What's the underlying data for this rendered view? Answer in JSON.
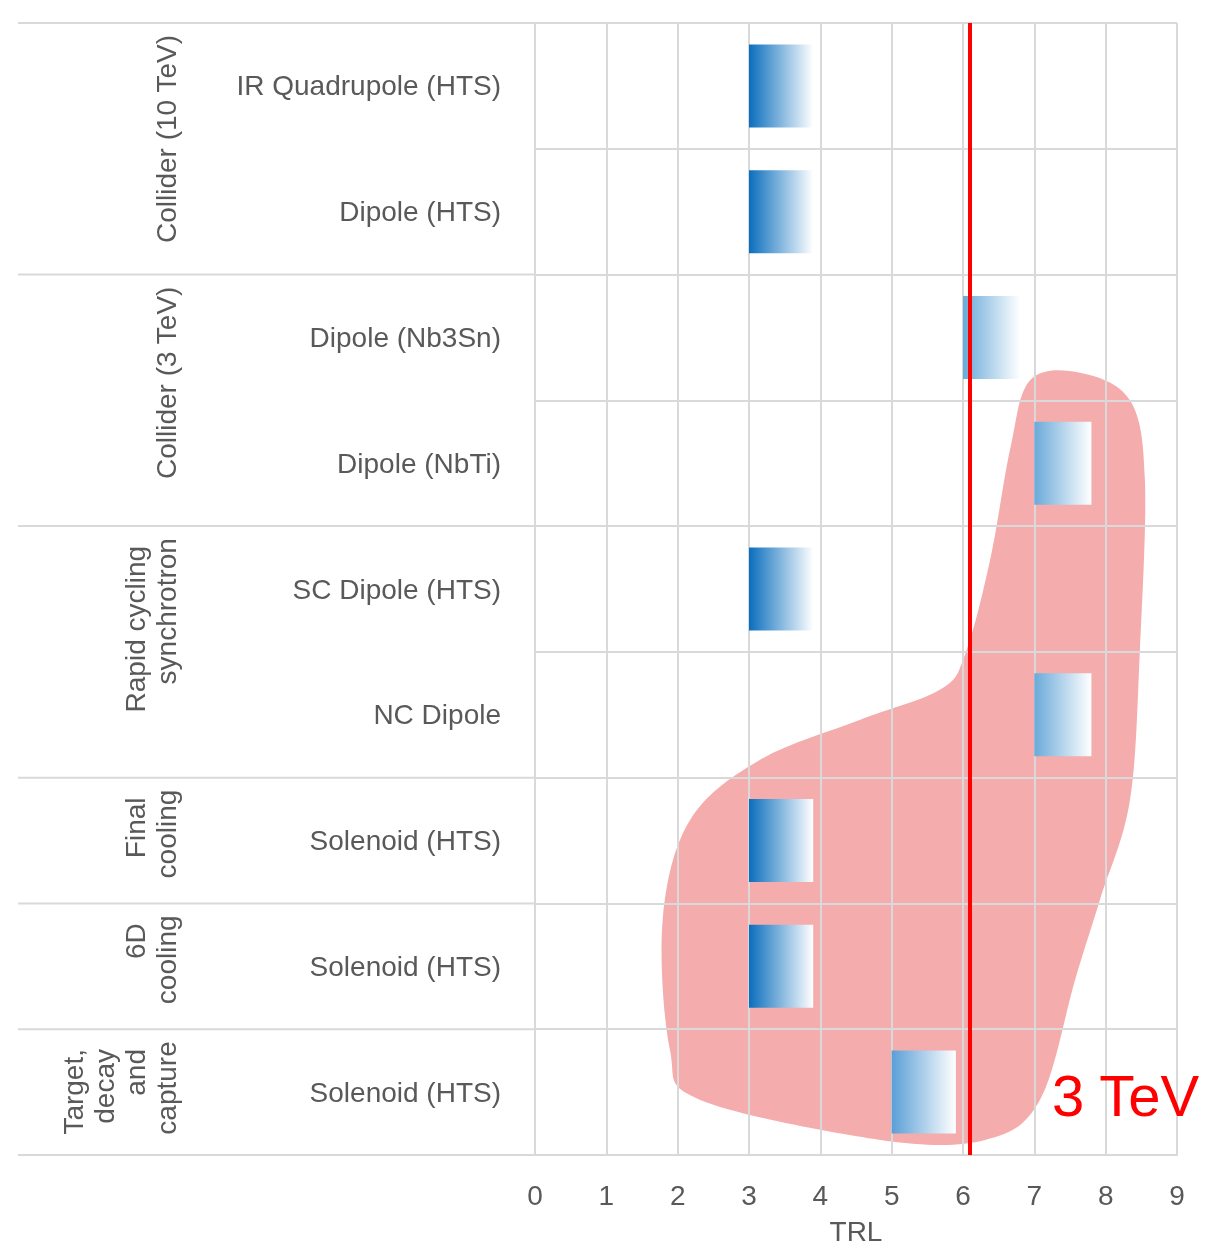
{
  "chart_data": {
    "type": "bar",
    "orientation": "horizontal",
    "categories": [
      "IR Quadrupole (HTS)",
      "Dipole (HTS)",
      "Dipole (Nb3Sn)",
      "Dipole (NbTi)",
      "SC Dipole (HTS)",
      "NC Dipole",
      "Solenoid (HTS)",
      "Solenoid (HTS)",
      "Solenoid (HTS)"
    ],
    "base": [
      3,
      3,
      6,
      7,
      3,
      7,
      3,
      3,
      5
    ],
    "values": [
      0.9,
      0.9,
      0.8,
      0.8,
      0.9,
      0.8,
      0.9,
      0.9,
      0.9
    ],
    "colors": [
      "#0a6ebd",
      "#0a6ebd",
      "#6aaad9",
      "#6aaad9",
      "#0a6ebd",
      "#6aaad9",
      "#0a6ebd",
      "#0a6ebd",
      "#5a9fd6"
    ],
    "xlabel": "TRL",
    "xlim": [
      0,
      9
    ],
    "xticks": [
      0,
      1,
      2,
      3,
      4,
      5,
      6,
      7,
      8,
      9
    ],
    "grid": true,
    "ref_lines": [
      {
        "axis": "x",
        "value": 6.1,
        "color": "#ff0000"
      }
    ],
    "annotations": [
      "Collider (10 TeV)",
      "Collider (3 TeV)",
      "Rapid cycling synchrotron",
      "Final cooling",
      "6D cooling",
      "Target, decay and capture",
      "3 TeV"
    ]
  }
}
